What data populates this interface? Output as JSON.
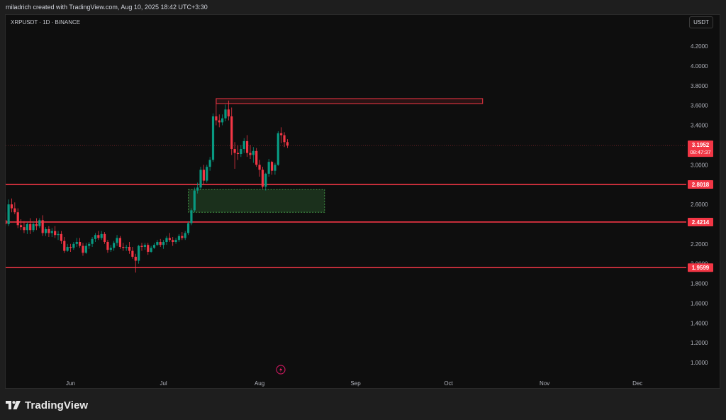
{
  "header": {
    "created_text": "miladrich created with TradingView.com, Aug 10, 2025 18:42 UTC+3:30"
  },
  "chart": {
    "symbol_title": "XRPUSDT · 1D · BINANCE",
    "currency_button": "USDT",
    "brand": "TradingView",
    "colors": {
      "up": "#089981",
      "down": "#f23645",
      "level_line": "#f23645",
      "supply_zone": "#f23645",
      "demand_zone": "#4caf50",
      "background": "#0e0e0e"
    },
    "current_price_label": {
      "price": "3.1952",
      "countdown": "08:47:37"
    },
    "level_labels": [
      "2.8018",
      "2.4214",
      "1.9599"
    ],
    "lightning_icon": "lightning-icon"
  },
  "chart_data": {
    "type": "candlestick",
    "symbol": "XRPUSDT",
    "timeframe": "1D",
    "exchange": "BINANCE",
    "y_axis": {
      "ticks": [
        "4.2000",
        "4.0000",
        "3.8000",
        "3.6000",
        "3.4000",
        "3.2000",
        "3.0000",
        "2.8000",
        "2.6000",
        "2.4000",
        "2.2000",
        "2.0000",
        "1.8000",
        "1.6000",
        "1.4000",
        "1.2000",
        "1.0000"
      ],
      "ylim": [
        0.92,
        4.35
      ]
    },
    "x_axis": {
      "ticks": [
        "Jun",
        "Jul",
        "Aug",
        "Sep",
        "Oct",
        "Nov",
        "Dec"
      ]
    },
    "horizontal_levels": [
      2.8018,
      2.4214,
      1.9599
    ],
    "last_price": 3.1952,
    "zones": [
      {
        "type": "supply",
        "from_date": "Jul 18",
        "to_date": "Oct 12",
        "low": 3.62,
        "high": 3.67
      },
      {
        "type": "demand",
        "from_date": "Jul 9",
        "to_date": "Aug 22",
        "low": 2.52,
        "high": 2.75
      }
    ],
    "candles": [
      {
        "date": "May 10",
        "o": 2.39,
        "h": 2.47,
        "l": 2.34,
        "c": 2.44
      },
      {
        "date": "May 11",
        "o": 2.44,
        "h": 2.52,
        "l": 2.38,
        "c": 2.4
      },
      {
        "date": "May 12",
        "o": 2.4,
        "h": 2.65,
        "l": 2.38,
        "c": 2.6
      },
      {
        "date": "May 13",
        "o": 2.6,
        "h": 2.66,
        "l": 2.52,
        "c": 2.56
      },
      {
        "date": "May 14",
        "o": 2.56,
        "h": 2.62,
        "l": 2.5,
        "c": 2.52
      },
      {
        "date": "May 15",
        "o": 2.52,
        "h": 2.56,
        "l": 2.36,
        "c": 2.39
      },
      {
        "date": "May 16",
        "o": 2.39,
        "h": 2.45,
        "l": 2.34,
        "c": 2.37
      },
      {
        "date": "May 17",
        "o": 2.37,
        "h": 2.43,
        "l": 2.31,
        "c": 2.34
      },
      {
        "date": "May 18",
        "o": 2.34,
        "h": 2.42,
        "l": 2.3,
        "c": 2.4
      },
      {
        "date": "May 19",
        "o": 2.4,
        "h": 2.46,
        "l": 2.3,
        "c": 2.34
      },
      {
        "date": "May 20",
        "o": 2.34,
        "h": 2.43,
        "l": 2.32,
        "c": 2.4
      },
      {
        "date": "May 21",
        "o": 2.4,
        "h": 2.46,
        "l": 2.34,
        "c": 2.38
      },
      {
        "date": "May 22",
        "o": 2.38,
        "h": 2.46,
        "l": 2.36,
        "c": 2.44
      },
      {
        "date": "May 23",
        "o": 2.44,
        "h": 2.49,
        "l": 2.28,
        "c": 2.31
      },
      {
        "date": "May 24",
        "o": 2.31,
        "h": 2.37,
        "l": 2.28,
        "c": 2.35
      },
      {
        "date": "May 25",
        "o": 2.35,
        "h": 2.38,
        "l": 2.27,
        "c": 2.31
      },
      {
        "date": "May 26",
        "o": 2.31,
        "h": 2.36,
        "l": 2.27,
        "c": 2.33
      },
      {
        "date": "May 27",
        "o": 2.33,
        "h": 2.38,
        "l": 2.26,
        "c": 2.29
      },
      {
        "date": "May 28",
        "o": 2.29,
        "h": 2.33,
        "l": 2.24,
        "c": 2.3
      },
      {
        "date": "May 29",
        "o": 2.3,
        "h": 2.33,
        "l": 2.2,
        "c": 2.23
      },
      {
        "date": "May 30",
        "o": 2.23,
        "h": 2.27,
        "l": 2.11,
        "c": 2.13
      },
      {
        "date": "May 31",
        "o": 2.13,
        "h": 2.2,
        "l": 2.12,
        "c": 2.17
      },
      {
        "date": "Jun 1",
        "o": 2.17,
        "h": 2.2,
        "l": 2.12,
        "c": 2.16
      },
      {
        "date": "Jun 2",
        "o": 2.16,
        "h": 2.22,
        "l": 2.14,
        "c": 2.2
      },
      {
        "date": "Jun 3",
        "o": 2.2,
        "h": 2.26,
        "l": 2.17,
        "c": 2.22
      },
      {
        "date": "Jun 4",
        "o": 2.22,
        "h": 2.26,
        "l": 2.16,
        "c": 2.18
      },
      {
        "date": "Jun 5",
        "o": 2.18,
        "h": 2.21,
        "l": 2.08,
        "c": 2.11
      },
      {
        "date": "Jun 6",
        "o": 2.11,
        "h": 2.21,
        "l": 2.1,
        "c": 2.18
      },
      {
        "date": "Jun 7",
        "o": 2.18,
        "h": 2.22,
        "l": 2.15,
        "c": 2.2
      },
      {
        "date": "Jun 8",
        "o": 2.2,
        "h": 2.27,
        "l": 2.17,
        "c": 2.25
      },
      {
        "date": "Jun 9",
        "o": 2.25,
        "h": 2.31,
        "l": 2.22,
        "c": 2.29
      },
      {
        "date": "Jun 10",
        "o": 2.29,
        "h": 2.33,
        "l": 2.24,
        "c": 2.26
      },
      {
        "date": "Jun 11",
        "o": 2.26,
        "h": 2.33,
        "l": 2.24,
        "c": 2.3
      },
      {
        "date": "Jun 12",
        "o": 2.3,
        "h": 2.32,
        "l": 2.2,
        "c": 2.22
      },
      {
        "date": "Jun 13",
        "o": 2.22,
        "h": 2.24,
        "l": 2.11,
        "c": 2.14
      },
      {
        "date": "Jun 14",
        "o": 2.14,
        "h": 2.19,
        "l": 2.12,
        "c": 2.16
      },
      {
        "date": "Jun 15",
        "o": 2.16,
        "h": 2.23,
        "l": 2.13,
        "c": 2.21
      },
      {
        "date": "Jun 16",
        "o": 2.21,
        "h": 2.29,
        "l": 2.18,
        "c": 2.26
      },
      {
        "date": "Jun 17",
        "o": 2.26,
        "h": 2.28,
        "l": 2.15,
        "c": 2.17
      },
      {
        "date": "Jun 18",
        "o": 2.17,
        "h": 2.21,
        "l": 2.13,
        "c": 2.16
      },
      {
        "date": "Jun 19",
        "o": 2.16,
        "h": 2.19,
        "l": 2.13,
        "c": 2.17
      },
      {
        "date": "Jun 20",
        "o": 2.17,
        "h": 2.22,
        "l": 2.1,
        "c": 2.13
      },
      {
        "date": "Jun 21",
        "o": 2.13,
        "h": 2.17,
        "l": 2.05,
        "c": 2.07
      },
      {
        "date": "Jun 22",
        "o": 2.07,
        "h": 2.1,
        "l": 1.91,
        "c": 2.03
      },
      {
        "date": "Jun 23",
        "o": 2.03,
        "h": 2.19,
        "l": 2.0,
        "c": 2.18
      },
      {
        "date": "Jun 24",
        "o": 2.18,
        "h": 2.21,
        "l": 2.13,
        "c": 2.17
      },
      {
        "date": "Jun 25",
        "o": 2.17,
        "h": 2.21,
        "l": 2.14,
        "c": 2.19
      },
      {
        "date": "Jun 26",
        "o": 2.19,
        "h": 2.21,
        "l": 2.09,
        "c": 2.12
      },
      {
        "date": "Jun 27",
        "o": 2.12,
        "h": 2.18,
        "l": 2.11,
        "c": 2.16
      },
      {
        "date": "Jun 28",
        "o": 2.16,
        "h": 2.21,
        "l": 2.15,
        "c": 2.19
      },
      {
        "date": "Jun 29",
        "o": 2.19,
        "h": 2.24,
        "l": 2.18,
        "c": 2.22
      },
      {
        "date": "Jun 30",
        "o": 2.22,
        "h": 2.25,
        "l": 2.17,
        "c": 2.19
      },
      {
        "date": "Jul 1",
        "o": 2.19,
        "h": 2.24,
        "l": 2.15,
        "c": 2.22
      },
      {
        "date": "Jul 2",
        "o": 2.22,
        "h": 2.28,
        "l": 2.19,
        "c": 2.26
      },
      {
        "date": "Jul 3",
        "o": 2.26,
        "h": 2.31,
        "l": 2.22,
        "c": 2.24
      },
      {
        "date": "Jul 4",
        "o": 2.24,
        "h": 2.27,
        "l": 2.18,
        "c": 2.22
      },
      {
        "date": "Jul 5",
        "o": 2.22,
        "h": 2.26,
        "l": 2.2,
        "c": 2.24
      },
      {
        "date": "Jul 6",
        "o": 2.24,
        "h": 2.3,
        "l": 2.22,
        "c": 2.28
      },
      {
        "date": "Jul 7",
        "o": 2.28,
        "h": 2.32,
        "l": 2.24,
        "c": 2.26
      },
      {
        "date": "Jul 8",
        "o": 2.26,
        "h": 2.33,
        "l": 2.24,
        "c": 2.31
      },
      {
        "date": "Jul 9",
        "o": 2.31,
        "h": 2.43,
        "l": 2.29,
        "c": 2.41
      },
      {
        "date": "Jul 10",
        "o": 2.41,
        "h": 2.56,
        "l": 2.39,
        "c": 2.54
      },
      {
        "date": "Jul 11",
        "o": 2.54,
        "h": 2.77,
        "l": 2.52,
        "c": 2.74
      },
      {
        "date": "Jul 12",
        "o": 2.74,
        "h": 2.82,
        "l": 2.71,
        "c": 2.77
      },
      {
        "date": "Jul 13",
        "o": 2.77,
        "h": 2.98,
        "l": 2.75,
        "c": 2.95
      },
      {
        "date": "Jul 14",
        "o": 2.95,
        "h": 3.0,
        "l": 2.8,
        "c": 2.84
      },
      {
        "date": "Jul 15",
        "o": 2.84,
        "h": 3.0,
        "l": 2.82,
        "c": 2.98
      },
      {
        "date": "Jul 16",
        "o": 2.98,
        "h": 3.08,
        "l": 2.94,
        "c": 3.05
      },
      {
        "date": "Jul 17",
        "o": 3.05,
        "h": 3.52,
        "l": 3.03,
        "c": 3.49
      },
      {
        "date": "Jul 18",
        "o": 3.49,
        "h": 3.66,
        "l": 3.4,
        "c": 3.45
      },
      {
        "date": "Jul 19",
        "o": 3.45,
        "h": 3.51,
        "l": 3.38,
        "c": 3.43
      },
      {
        "date": "Jul 20",
        "o": 3.43,
        "h": 3.51,
        "l": 3.4,
        "c": 3.47
      },
      {
        "date": "Jul 21",
        "o": 3.47,
        "h": 3.61,
        "l": 3.44,
        "c": 3.56
      },
      {
        "date": "Jul 22",
        "o": 3.56,
        "h": 3.65,
        "l": 3.45,
        "c": 3.49
      },
      {
        "date": "Jul 23",
        "o": 3.49,
        "h": 3.58,
        "l": 3.1,
        "c": 3.16
      },
      {
        "date": "Jul 24",
        "o": 3.16,
        "h": 3.23,
        "l": 2.96,
        "c": 3.12
      },
      {
        "date": "Jul 25",
        "o": 3.12,
        "h": 3.2,
        "l": 3.05,
        "c": 3.11
      },
      {
        "date": "Jul 26",
        "o": 3.11,
        "h": 3.2,
        "l": 3.08,
        "c": 3.16
      },
      {
        "date": "Jul 27",
        "o": 3.16,
        "h": 3.27,
        "l": 3.12,
        "c": 3.24
      },
      {
        "date": "Jul 28",
        "o": 3.24,
        "h": 3.3,
        "l": 3.08,
        "c": 3.12
      },
      {
        "date": "Jul 29",
        "o": 3.12,
        "h": 3.2,
        "l": 3.06,
        "c": 3.1
      },
      {
        "date": "Jul 30",
        "o": 3.1,
        "h": 3.18,
        "l": 3.02,
        "c": 3.14
      },
      {
        "date": "Jul 31",
        "o": 3.14,
        "h": 3.17,
        "l": 2.98,
        "c": 3.0
      },
      {
        "date": "Aug 1",
        "o": 3.0,
        "h": 3.05,
        "l": 2.88,
        "c": 2.95
      },
      {
        "date": "Aug 2",
        "o": 2.95,
        "h": 2.98,
        "l": 2.76,
        "c": 2.78
      },
      {
        "date": "Aug 3",
        "o": 2.78,
        "h": 2.92,
        "l": 2.74,
        "c": 2.91
      },
      {
        "date": "Aug 4",
        "o": 2.91,
        "h": 3.06,
        "l": 2.88,
        "c": 3.03
      },
      {
        "date": "Aug 5",
        "o": 3.03,
        "h": 3.04,
        "l": 2.9,
        "c": 2.94
      },
      {
        "date": "Aug 6",
        "o": 2.94,
        "h": 3.02,
        "l": 2.9,
        "c": 3.0
      },
      {
        "date": "Aug 7",
        "o": 3.0,
        "h": 3.34,
        "l": 2.99,
        "c": 3.32
      },
      {
        "date": "Aug 8",
        "o": 3.32,
        "h": 3.38,
        "l": 3.22,
        "c": 3.3
      },
      {
        "date": "Aug 9",
        "o": 3.3,
        "h": 3.33,
        "l": 3.18,
        "c": 3.23
      },
      {
        "date": "Aug 10",
        "o": 3.23,
        "h": 3.26,
        "l": 3.17,
        "c": 3.1952
      }
    ]
  }
}
